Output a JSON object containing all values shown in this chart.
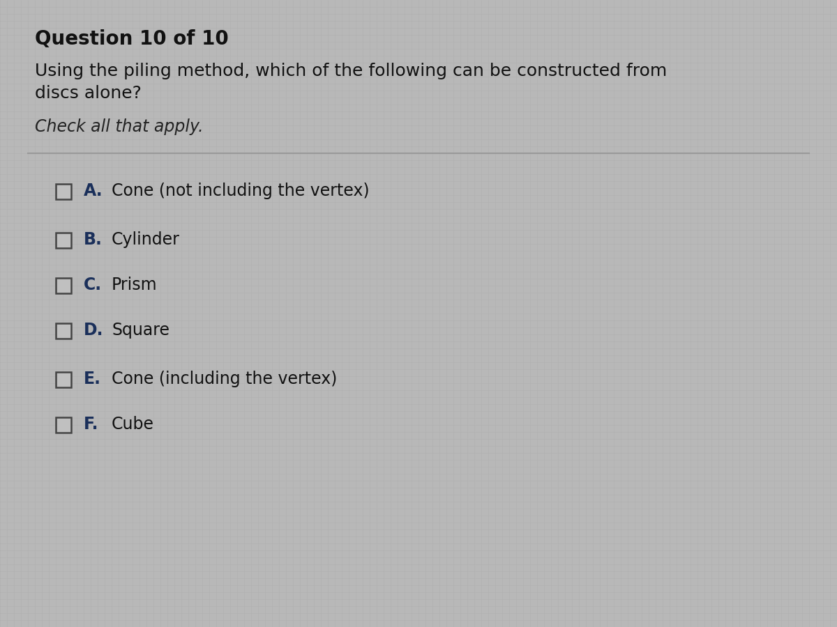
{
  "title": "Question 10 of 10",
  "question_line1": "Using the piling method, which of the following can be constructed from",
  "question_line2": "discs alone?",
  "instruction": "Check all that apply.",
  "options": [
    {
      "label": "A.",
      "text": "Cone (not including the vertex)"
    },
    {
      "label": "B.",
      "text": "Cylinder"
    },
    {
      "label": "C.",
      "text": "Prism"
    },
    {
      "label": "D.",
      "text": "Square"
    },
    {
      "label": "E.",
      "text": "Cone (including the vertex)"
    },
    {
      "label": "F.",
      "text": "Cube"
    }
  ],
  "background_color": "#b8b8b8",
  "title_color": "#111111",
  "question_color": "#111111",
  "instruction_color": "#222222",
  "option_label_color": "#1a2f5a",
  "option_text_color": "#111111",
  "checkbox_edge_color": "#444444",
  "checkbox_face_color": "#c0c0c0",
  "divider_color": "#999999",
  "title_fontsize": 20,
  "question_fontsize": 18,
  "instruction_fontsize": 17,
  "option_fontsize": 17
}
